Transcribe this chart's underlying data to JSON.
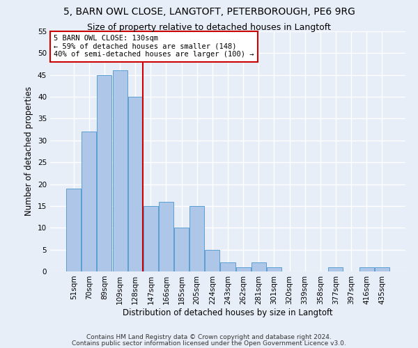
{
  "title1": "5, BARN OWL CLOSE, LANGTOFT, PETERBOROUGH, PE6 9RG",
  "title2": "Size of property relative to detached houses in Langtoft",
  "xlabel": "Distribution of detached houses by size in Langtoft",
  "ylabel": "Number of detached properties",
  "categories": [
    "51sqm",
    "70sqm",
    "89sqm",
    "109sqm",
    "128sqm",
    "147sqm",
    "166sqm",
    "185sqm",
    "205sqm",
    "224sqm",
    "243sqm",
    "262sqm",
    "281sqm",
    "301sqm",
    "320sqm",
    "339sqm",
    "358sqm",
    "377sqm",
    "397sqm",
    "416sqm",
    "435sqm"
  ],
  "values": [
    19,
    32,
    45,
    46,
    40,
    15,
    16,
    10,
    15,
    5,
    2,
    1,
    2,
    1,
    0,
    0,
    0,
    1,
    0,
    1,
    1
  ],
  "bar_color": "#aec6e8",
  "bar_edge_color": "#5a9fd4",
  "annotation_line1": "5 BARN OWL CLOSE: 130sqm",
  "annotation_line2": "← 59% of detached houses are smaller (148)",
  "annotation_line3": "40% of semi-detached houses are larger (100) →",
  "annotation_box_color": "#ffffff",
  "annotation_box_edge": "#cc0000",
  "vline_color": "#cc0000",
  "vline_x": 4.5,
  "footnote1": "Contains HM Land Registry data © Crown copyright and database right 2024.",
  "footnote2": "Contains public sector information licensed under the Open Government Licence v3.0.",
  "ylim": [
    0,
    55
  ],
  "yticks": [
    0,
    5,
    10,
    15,
    20,
    25,
    30,
    35,
    40,
    45,
    50,
    55
  ],
  "bg_color": "#e8eef8",
  "grid_color": "#ffffff",
  "title1_fontsize": 10,
  "title2_fontsize": 9,
  "xlabel_fontsize": 8.5,
  "ylabel_fontsize": 8.5,
  "tick_fontsize": 7.5,
  "annot_fontsize": 7.5,
  "footnote_fontsize": 6.5
}
